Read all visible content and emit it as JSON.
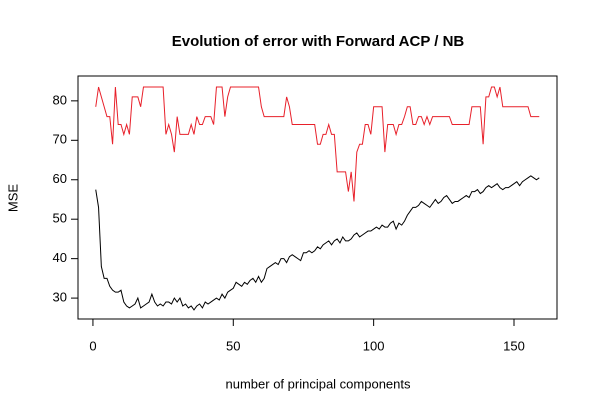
{
  "chart_data": {
    "type": "line",
    "title": "Evolution of error with Forward ACP / NB",
    "x_label": "number of principal components",
    "y_label": "MSE",
    "x": [
      1,
      2,
      3,
      4,
      5,
      6,
      7,
      8,
      9,
      10,
      11,
      12,
      13,
      14,
      15,
      16,
      17,
      18,
      19,
      20,
      21,
      22,
      23,
      24,
      25,
      26,
      27,
      28,
      29,
      30,
      31,
      32,
      33,
      34,
      35,
      36,
      37,
      38,
      39,
      40,
      41,
      42,
      43,
      44,
      45,
      46,
      47,
      48,
      49,
      50,
      51,
      52,
      53,
      54,
      55,
      56,
      57,
      58,
      59,
      60,
      61,
      62,
      63,
      64,
      65,
      66,
      67,
      68,
      69,
      70,
      71,
      72,
      73,
      74,
      75,
      76,
      77,
      78,
      79,
      80,
      81,
      82,
      83,
      84,
      85,
      86,
      87,
      88,
      89,
      90,
      91,
      92,
      93,
      94,
      95,
      96,
      97,
      98,
      99,
      100,
      101,
      102,
      103,
      104,
      105,
      106,
      107,
      108,
      109,
      110,
      111,
      112,
      113,
      114,
      115,
      116,
      117,
      118,
      119,
      120,
      121,
      122,
      123,
      124,
      125,
      126,
      127,
      128,
      129,
      130,
      131,
      132,
      133,
      134,
      135,
      136,
      137,
      138,
      139,
      140,
      141,
      142,
      143,
      144,
      145,
      146,
      147,
      148,
      149,
      150,
      151,
      152,
      153,
      154,
      155,
      156,
      157,
      158,
      159
    ],
    "series": [
      {
        "color": "#000000",
        "values": [
          57.5,
          53,
          38,
          35,
          35,
          33,
          32,
          31.5,
          31.5,
          32,
          29,
          28,
          27.5,
          28,
          28.5,
          30,
          27.5,
          28,
          28.5,
          29,
          31,
          29,
          28,
          28.5,
          28,
          29,
          29,
          28.5,
          30,
          29,
          30,
          28,
          28.5,
          27.5,
          28,
          27,
          28,
          28.5,
          27.5,
          29,
          28.5,
          29,
          29.5,
          30,
          29.5,
          31,
          30,
          31.5,
          32,
          32.5,
          34,
          33.5,
          33,
          34,
          33.5,
          34.5,
          35,
          34,
          35.5,
          34,
          35,
          37.5,
          38,
          38.5,
          39,
          38.5,
          40,
          40,
          39,
          40.5,
          41,
          40.5,
          40,
          39.5,
          41.5,
          41.5,
          42,
          41.5,
          42,
          43,
          42.5,
          43.5,
          44,
          44.5,
          43.5,
          44.5,
          45,
          44,
          45.5,
          44.5,
          44.5,
          45,
          46,
          46.5,
          45.5,
          46,
          46.5,
          47,
          47,
          47.5,
          48,
          47.5,
          48.5,
          48,
          48,
          49,
          49.5,
          47.5,
          49,
          48.5,
          49.5,
          51,
          52,
          53,
          53,
          53.5,
          54.5,
          54,
          53.5,
          53,
          54,
          55,
          54,
          54.5,
          55.5,
          56,
          55,
          54,
          54.5,
          54.5,
          55,
          55.5,
          56,
          55.5,
          57,
          57,
          57.5,
          56.5,
          57,
          58,
          58.5,
          58,
          58.5,
          59,
          58,
          57.5,
          58,
          58,
          58.5,
          59,
          59.5,
          58.5,
          59.5,
          60,
          60.5,
          61,
          60.5,
          60,
          60.5
        ]
      },
      {
        "color": "#e8202a",
        "values": [
          78.5,
          83.5,
          81,
          78.5,
          76,
          76,
          69,
          83.5,
          74,
          74,
          71.5,
          74,
          71.5,
          81,
          81,
          81,
          78.5,
          83.5,
          83.5,
          83.5,
          83.5,
          83.5,
          83.5,
          83.5,
          83.5,
          71.5,
          74,
          71.5,
          67,
          76,
          71.5,
          71.5,
          71.5,
          71.5,
          74,
          71.5,
          76,
          74,
          74,
          76,
          76,
          76,
          74,
          83.5,
          83.5,
          83.5,
          76,
          81,
          83.5,
          83.5,
          83.5,
          83.5,
          83.5,
          83.5,
          83.5,
          83.5,
          83.5,
          83.5,
          83.5,
          78.5,
          76,
          76,
          76,
          76,
          76,
          76,
          76,
          76,
          81,
          78.5,
          74,
          74,
          74,
          74,
          74,
          74,
          74,
          74,
          74,
          69,
          69,
          71.5,
          71.5,
          74,
          71.5,
          71.5,
          62,
          62,
          62,
          62,
          57,
          62,
          54.5,
          67,
          69,
          69,
          74,
          74,
          71.5,
          78.5,
          78.5,
          78.5,
          78.5,
          67,
          74,
          74,
          74,
          71.5,
          74,
          74,
          76,
          78.5,
          78.5,
          74,
          74,
          76,
          76,
          74,
          76,
          74,
          76,
          76,
          76,
          76,
          76,
          76,
          76,
          74,
          74,
          74,
          74,
          74,
          74,
          74,
          78.5,
          78.5,
          78.5,
          78.5,
          69,
          81,
          81,
          83.5,
          83.5,
          81,
          83.5,
          78.5,
          78.5,
          78.5,
          78.5,
          78.5,
          78.5,
          78.5,
          78.5,
          78.5,
          78.5,
          76,
          76,
          76,
          76
        ]
      }
    ],
    "xlim": [
      -5.32,
      165.32
    ],
    "xticks": [
      0,
      50,
      100,
      150
    ],
    "ylim": [
      24.7,
      86.3
    ],
    "yticks": [
      30,
      40,
      50,
      60,
      70,
      80
    ]
  }
}
